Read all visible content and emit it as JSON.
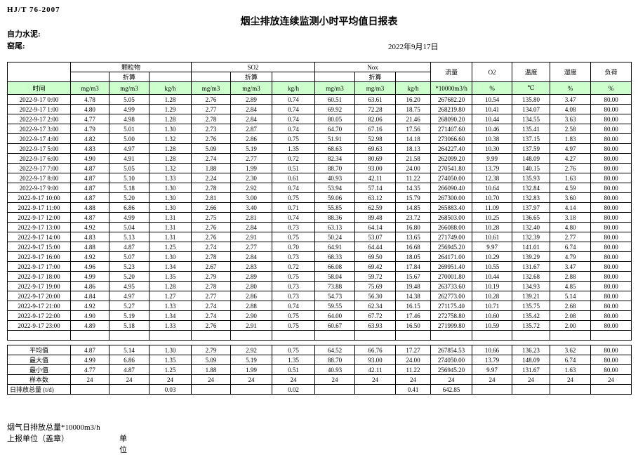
{
  "page": {
    "standard": "HJ/T 76-2007",
    "title": "烟尘排放连续监测小时平均值日报表",
    "company": "自力水泥:",
    "location": "窑尾:",
    "date": "2022年9月17日"
  },
  "colors": {
    "header_green": "#ccffcc"
  },
  "table": {
    "time_header": "时间",
    "groups": [
      {
        "label": "颗粒物",
        "sub": "折算",
        "units": [
          "mg/m3",
          "mg/m3",
          "kg/h"
        ]
      },
      {
        "label": "SO2",
        "sub": "折算",
        "units": [
          "mg/m3",
          "mg/m3",
          "kg/h"
        ]
      },
      {
        "label": "Nox",
        "sub": "折算",
        "units": [
          "mg/m3",
          "mg/m3",
          "kg/h"
        ]
      }
    ],
    "single_cols": [
      {
        "label": "流量",
        "unit": "*10000m3/h"
      },
      {
        "label": "O2",
        "unit": "%"
      },
      {
        "label": "温度",
        "unit": "℃"
      },
      {
        "label": "湿度",
        "unit": "%"
      },
      {
        "label": "负荷",
        "unit": "%"
      }
    ],
    "rows": [
      {
        "time": "2022-9-17 0:00",
        "values": [
          "4.78",
          "5.05",
          "1.28",
          "2.76",
          "2.89",
          "0.74",
          "60.51",
          "63.61",
          "16.20",
          "267682.20",
          "10.54",
          "135.80",
          "3.47",
          "80.00"
        ]
      },
      {
        "time": "2022-9-17 1:00",
        "values": [
          "4.80",
          "4.99",
          "1.29",
          "2.77",
          "2.84",
          "0.74",
          "69.92",
          "72.28",
          "18.75",
          "268219.80",
          "10.41",
          "134.07",
          "4.08",
          "80.00"
        ]
      },
      {
        "time": "2022-9-17 2:00",
        "values": [
          "4.77",
          "4.98",
          "1.28",
          "2.78",
          "2.84",
          "0.74",
          "80.05",
          "82.06",
          "21.46",
          "268090.20",
          "10.44",
          "134.55",
          "3.63",
          "80.00"
        ]
      },
      {
        "time": "2022-9-17 3:00",
        "values": [
          "4.79",
          "5.01",
          "1.30",
          "2.73",
          "2.87",
          "0.74",
          "64.70",
          "67.16",
          "17.56",
          "271407.60",
          "10.46",
          "135.41",
          "2.58",
          "80.00"
        ]
      },
      {
        "time": "2022-9-17 4:00",
        "values": [
          "4.82",
          "5.00",
          "1.32",
          "2.76",
          "2.86",
          "0.75",
          "51.91",
          "52.98",
          "14.18",
          "273066.60",
          "10.38",
          "137.15",
          "1.83",
          "80.00"
        ]
      },
      {
        "time": "2022-9-17 5:00",
        "values": [
          "4.83",
          "4.97",
          "1.28",
          "5.09",
          "5.19",
          "1.35",
          "68.63",
          "69.63",
          "18.13",
          "264227.40",
          "10.30",
          "137.59",
          "4.97",
          "80.00"
        ]
      },
      {
        "time": "2022-9-17 6:00",
        "values": [
          "4.90",
          "4.91",
          "1.28",
          "2.74",
          "2.77",
          "0.72",
          "82.34",
          "80.69",
          "21.58",
          "262099.20",
          "9.99",
          "148.09",
          "4.27",
          "80.00"
        ]
      },
      {
        "time": "2022-9-17 7:00",
        "values": [
          "4.87",
          "5.05",
          "1.32",
          "1.88",
          "1.99",
          "0.51",
          "88.70",
          "93.00",
          "24.00",
          "270541.80",
          "13.79",
          "140.15",
          "2.76",
          "80.00"
        ]
      },
      {
        "time": "2022-9-17 8:00",
        "values": [
          "4.87",
          "5.10",
          "1.33",
          "2.24",
          "2.30",
          "0.61",
          "40.93",
          "42.11",
          "11.22",
          "274050.00",
          "12.38",
          "135.93",
          "1.63",
          "80.00"
        ]
      },
      {
        "time": "2022-9-17 9:00",
        "values": [
          "4.87",
          "5.18",
          "1.30",
          "2.78",
          "2.92",
          "0.74",
          "53.94",
          "57.14",
          "14.35",
          "266090.40",
          "10.64",
          "132.84",
          "4.59",
          "80.00"
        ]
      },
      {
        "time": "2022-9-17 10:00",
        "values": [
          "4.87",
          "5.20",
          "1.30",
          "2.81",
          "3.00",
          "0.75",
          "59.06",
          "63.12",
          "15.79",
          "267300.00",
          "10.70",
          "132.83",
          "3.60",
          "80.00"
        ]
      },
      {
        "time": "2022-9-17 11:00",
        "values": [
          "4.88",
          "6.86",
          "1.30",
          "2.66",
          "3.40",
          "0.71",
          "55.85",
          "62.59",
          "14.85",
          "265883.40",
          "11.09",
          "137.97",
          "4.14",
          "80.00"
        ]
      },
      {
        "time": "2022-9-17 12:00",
        "values": [
          "4.87",
          "4.99",
          "1.31",
          "2.75",
          "2.81",
          "0.74",
          "88.36",
          "89.48",
          "23.72",
          "268503.00",
          "10.25",
          "136.65",
          "3.18",
          "80.00"
        ]
      },
      {
        "time": "2022-9-17 13:00",
        "values": [
          "4.92",
          "5.04",
          "1.31",
          "2.76",
          "2.84",
          "0.73",
          "63.13",
          "64.14",
          "16.80",
          "266088.00",
          "10.28",
          "132.40",
          "4.80",
          "80.00"
        ]
      },
      {
        "time": "2022-9-17 14:00",
        "values": [
          "4.83",
          "5.13",
          "1.31",
          "2.76",
          "2.91",
          "0.75",
          "50.24",
          "53.07",
          "13.65",
          "271749.00",
          "10.61",
          "132.39",
          "2.77",
          "80.00"
        ]
      },
      {
        "time": "2022-9-17 15:00",
        "values": [
          "4.88",
          "4.87",
          "1.25",
          "2.74",
          "2.77",
          "0.70",
          "64.91",
          "64.44",
          "16.68",
          "256945.20",
          "9.97",
          "141.01",
          "6.74",
          "80.00"
        ]
      },
      {
        "time": "2022-9-17 16:00",
        "values": [
          "4.92",
          "5.07",
          "1.30",
          "2.78",
          "2.84",
          "0.73",
          "68.33",
          "69.50",
          "18.05",
          "264171.00",
          "10.29",
          "139.29",
          "4.79",
          "80.00"
        ]
      },
      {
        "time": "2022-9-17 17:00",
        "values": [
          "4.96",
          "5.23",
          "1.34",
          "2.67",
          "2.83",
          "0.72",
          "66.08",
          "69.42",
          "17.84",
          "269951.40",
          "10.55",
          "131.67",
          "3.47",
          "80.00"
        ]
      },
      {
        "time": "2022-9-17 18:00",
        "values": [
          "4.99",
          "5.20",
          "1.35",
          "2.79",
          "2.89",
          "0.75",
          "58.04",
          "59.72",
          "15.67",
          "270001.80",
          "10.44",
          "132.68",
          "2.88",
          "80.00"
        ]
      },
      {
        "time": "2022-9-17 19:00",
        "values": [
          "4.86",
          "4.95",
          "1.28",
          "2.78",
          "2.80",
          "0.73",
          "73.88",
          "75.69",
          "19.48",
          "263733.60",
          "10.19",
          "134.93",
          "4.85",
          "80.00"
        ]
      },
      {
        "time": "2022-9-17 20:00",
        "values": [
          "4.84",
          "4.97",
          "1.27",
          "2.77",
          "2.86",
          "0.73",
          "54.73",
          "56.30",
          "14.38",
          "262773.00",
          "10.28",
          "139.21",
          "5.14",
          "80.00"
        ]
      },
      {
        "time": "2022-9-17 21:00",
        "values": [
          "4.92",
          "5.27",
          "1.33",
          "2.74",
          "2.88",
          "0.74",
          "59.55",
          "62.34",
          "16.15",
          "271175.40",
          "10.71",
          "135.75",
          "2.68",
          "80.00"
        ]
      },
      {
        "time": "2022-9-17 22:00",
        "values": [
          "4.90",
          "5.19",
          "1.34",
          "2.74",
          "2.90",
          "0.75",
          "64.00",
          "67.72",
          "17.46",
          "272758.80",
          "10.60",
          "135.42",
          "2.08",
          "80.00"
        ]
      },
      {
        "time": "2022-9-17 23:00",
        "values": [
          "4.89",
          "5.18",
          "1.33",
          "2.76",
          "2.91",
          "0.75",
          "60.67",
          "63.93",
          "16.50",
          "271999.80",
          "10.59",
          "135.72",
          "2.00",
          "80.00"
        ]
      }
    ],
    "summary": [
      {
        "label": "平均值",
        "align": "center",
        "values": [
          "4.87",
          "5.14",
          "1.30",
          "2.79",
          "2.92",
          "0.75",
          "64.52",
          "66.76",
          "17.27",
          "267854.53",
          "10.66",
          "136.23",
          "3.62",
          "80.00"
        ]
      },
      {
        "label": "最大值",
        "align": "center",
        "values": [
          "4.99",
          "6.86",
          "1.35",
          "5.09",
          "5.19",
          "1.35",
          "88.70",
          "93.00",
          "24.00",
          "274050.00",
          "13.79",
          "148.09",
          "6.74",
          "80.00"
        ]
      },
      {
        "label": "最小值",
        "align": "center",
        "values": [
          "4.77",
          "4.87",
          "1.25",
          "1.88",
          "1.99",
          "0.51",
          "40.93",
          "42.11",
          "11.22",
          "256945.20",
          "9.97",
          "131.67",
          "1.63",
          "80.00"
        ]
      },
      {
        "label": "样本数",
        "align": "center",
        "values": [
          "24",
          "24",
          "24",
          "24",
          "24",
          "24",
          "24",
          "24",
          "24",
          "24",
          "24",
          "24",
          "24",
          "24"
        ]
      },
      {
        "label": "日排放总量 (t/d)",
        "align": "left",
        "values": [
          "",
          "",
          "0.03",
          "",
          "",
          "0.02",
          "",
          "",
          "0.41",
          "642.85",
          "",
          "",
          "",
          ""
        ]
      }
    ]
  },
  "footer": {
    "line1": "烟气日排放总量*10000m3/h",
    "line2": "上报单位（盖章）",
    "line2_unit": "单位"
  }
}
